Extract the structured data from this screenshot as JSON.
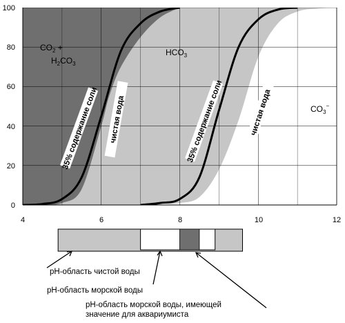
{
  "chart_data": {
    "type": "area",
    "x_ticks": [
      "4",
      "6",
      "8",
      "10",
      "12"
    ],
    "y_ticks": [
      "0",
      "20",
      "40",
      "60",
      "80",
      "100"
    ],
    "xlim": [
      4,
      12
    ],
    "ylim": [
      0,
      100
    ],
    "grid": true,
    "regions": {
      "co2": {
        "main": "CO",
        "sub1": "2",
        "plus": " +",
        "line2_pre": "H",
        "line2_sub": "2",
        "line2_post": "CO",
        "line2_sub2": "3"
      },
      "hco3": {
        "main": "HCO",
        "sub": "3"
      },
      "co3": {
        "main": "CO",
        "sub": "3",
        "sup": "−"
      }
    },
    "band_labels": {
      "left_salt": "35% содержание соли",
      "left_fresh": "чистая вода",
      "right_salt": "35% содержание соли",
      "right_fresh": "чистая вода"
    },
    "curves": {
      "co2_fresh_edge": {
        "x": [
          4.5,
          5.0,
          5.5,
          6.0,
          6.2,
          6.5,
          7.0,
          7.5,
          8.0
        ],
        "y": [
          0,
          1,
          8,
          40,
          55,
          70,
          85,
          95,
          100
        ]
      },
      "co2_salt_curve": {
        "x": [
          4.0,
          4.5,
          5.0,
          5.5,
          6.0,
          6.5,
          7.0,
          7.5,
          8.0
        ],
        "y": [
          0,
          0.5,
          3,
          14,
          45,
          78,
          92,
          98,
          100
        ]
      },
      "co3_fresh_curve": {
        "x": [
          7.0,
          7.5,
          8.0,
          8.5,
          9.0,
          9.5,
          10.0,
          10.5,
          11.0
        ],
        "y": [
          0,
          1,
          3,
          14,
          48,
          80,
          94,
          99,
          100
        ]
      },
      "co3_salt_edge": {
        "x": [
          6.8,
          7.5,
          8.0,
          8.5,
          9.0,
          9.5,
          10.0,
          10.5,
          11.0,
          11.5,
          12.0
        ],
        "y": [
          0,
          0.5,
          1,
          4,
          18,
          43,
          75,
          92,
          98,
          99.5,
          100
        ]
      }
    },
    "ph_bar": {
      "range": [
        4,
        12
      ],
      "fresh_water": [
        4.9,
        9.6
      ],
      "sea_water": [
        7.0,
        8.9
      ],
      "aquarium": [
        8.0,
        8.5
      ]
    },
    "legend_notes": [
      "pH-область чистой воды",
      "pH-область морской воды",
      "pH-область морской воды, имеющей",
      "значение для аквариумиста"
    ],
    "colors": {
      "dark": "#6f6f6f",
      "light": "#c6c6c6",
      "white": "#ffffff",
      "curve": "#000000"
    }
  }
}
